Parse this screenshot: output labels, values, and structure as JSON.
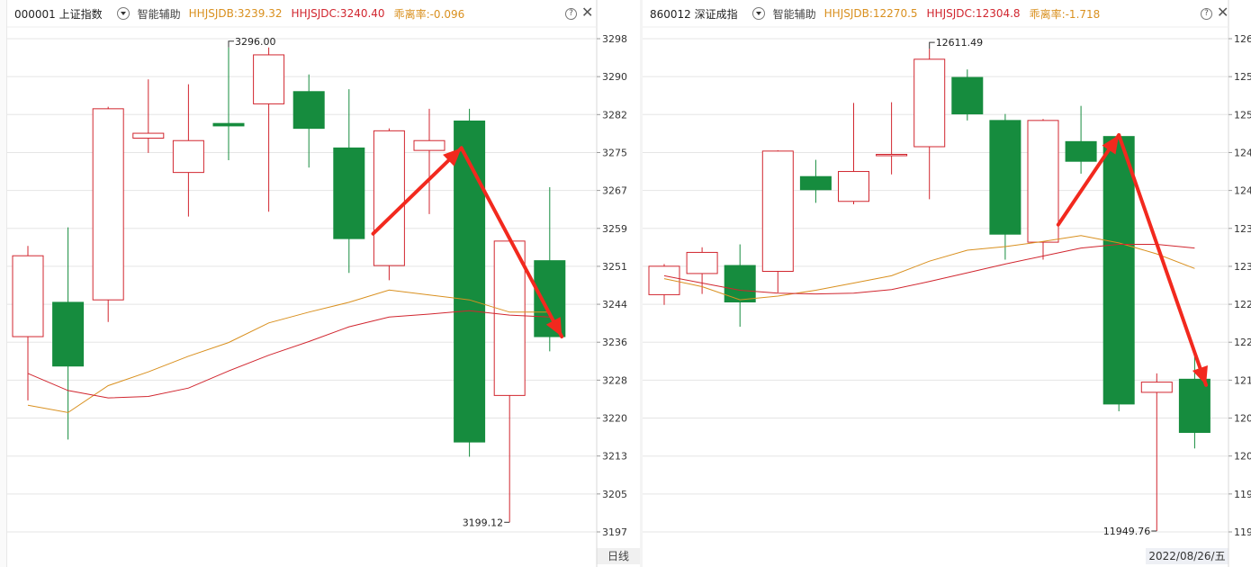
{
  "colors": {
    "up": "#d1262f",
    "down": "#168c3e",
    "ma1": "#d9901f",
    "ma2": "#d1262f",
    "arrow": "#f2291e",
    "grid": "#e5e5e5"
  },
  "panels": [
    {
      "code_name": "000001 上证指数",
      "assist": "智能辅助",
      "ma1_text": "HHJSJDB:3239.32",
      "ma2_text": "HHJSJDC:3240.40",
      "deviation_text": "乖离率:-0.096",
      "footer_label": "日线",
      "chart_data": {
        "type": "candlestick",
        "ylim": [
          3194.4,
          3300
        ],
        "y_ticks": [
          "3298",
          "3290",
          "3282",
          "3275",
          "3267",
          "3259",
          "3251",
          "3244",
          "3236",
          "3228",
          "3220",
          "3213",
          "3205",
          "3197"
        ],
        "candles": [
          {
            "o": 3237.0,
            "h": 3255.5,
            "l": 3224.0,
            "c": 3253.5
          },
          {
            "o": 3244.0,
            "h": 3259.3,
            "l": 3216.0,
            "c": 3231.0
          },
          {
            "o": 3244.5,
            "h": 3283.9,
            "l": 3240.0,
            "c": 3283.5
          },
          {
            "o": 3277.5,
            "h": 3289.5,
            "l": 3274.5,
            "c": 3278.5
          },
          {
            "o": 3270.5,
            "h": 3288.5,
            "l": 3261.5,
            "c": 3277.0
          },
          {
            "o": 3280.5,
            "h": 3296.0,
            "l": 3273.0,
            "c": 3280.0
          },
          {
            "o": 3284.5,
            "h": 3296.0,
            "l": 3262.5,
            "c": 3294.5
          },
          {
            "o": 3287.0,
            "h": 3290.5,
            "l": 3271.5,
            "c": 3279.5
          },
          {
            "o": 3275.5,
            "h": 3287.5,
            "l": 3250.0,
            "c": 3257.0
          },
          {
            "o": 3251.5,
            "h": 3279.5,
            "l": 3248.5,
            "c": 3279.0
          },
          {
            "o": 3275.0,
            "h": 3283.5,
            "l": 3262.0,
            "c": 3277.0
          },
          {
            "o": 3281.0,
            "h": 3283.5,
            "l": 3212.5,
            "c": 3215.5
          },
          {
            "o": 3225.0,
            "h": 3256.0,
            "l": 3199.12,
            "c": 3256.5
          },
          {
            "o": 3252.5,
            "h": 3267.5,
            "l": 3234.0,
            "c": 3237.0
          }
        ],
        "ma1": [
          3223.0,
          3221.5,
          3227.0,
          3229.8,
          3233.0,
          3235.8,
          3239.8,
          3242.0,
          3244.0,
          3246.5,
          3245.5,
          3244.5,
          3242.0,
          3242.0
        ],
        "ma2": [
          3229.5,
          3226.0,
          3224.5,
          3224.8,
          3226.5,
          3230.0,
          3233.2,
          3236.0,
          3239.0,
          3241.0,
          3241.6,
          3242.3,
          3241.4,
          3241.0
        ],
        "high_label": "3296.00",
        "low_label": "3199.12",
        "arrows": [
          {
            "from": [
              8.6,
              3258.0
            ],
            "to": [
              10.8,
              3275.5
            ]
          },
          {
            "from": [
              10.8,
              3275.5
            ],
            "to": [
              13.3,
              3237.0
            ]
          }
        ]
      }
    },
    {
      "code_name": "860012 深证成指",
      "assist": "智能辅助",
      "ma1_text": "HHJSJDB:12270.5",
      "ma2_text": "HHJSJDC:12304.8",
      "deviation_text": "乖离率:-1.718",
      "footer_label": "2022/08/26/五",
      "chart_data": {
        "type": "candlestick",
        "ylim": [
          11930,
          12640
        ],
        "y_ticks": [
          "126",
          "125",
          "125",
          "124",
          "124",
          "123",
          "123",
          "122",
          "122",
          "121",
          "120",
          "120",
          "119",
          "119"
        ],
        "candles": [
          {
            "o": 12274.0,
            "h": 12316.0,
            "l": 12260.0,
            "c": 12313.0
          },
          {
            "o": 12303.0,
            "h": 12339.0,
            "l": 12275.0,
            "c": 12332.0
          },
          {
            "o": 12314.0,
            "h": 12343.0,
            "l": 12230.0,
            "c": 12264.0
          },
          {
            "o": 12306.0,
            "h": 12472.0,
            "l": 12277.0,
            "c": 12471.0
          },
          {
            "o": 12436.0,
            "h": 12459.0,
            "l": 12400.0,
            "c": 12418.0
          },
          {
            "o": 12402.0,
            "h": 12537.0,
            "l": 12398.0,
            "c": 12443.0
          },
          {
            "o": 12466.0,
            "h": 12538.0,
            "l": 12439.0,
            "c": 12466.5
          },
          {
            "o": 12477.0,
            "h": 12611.49,
            "l": 12405.0,
            "c": 12597.0
          },
          {
            "o": 12572.0,
            "h": 12583.0,
            "l": 12513.0,
            "c": 12522.0
          },
          {
            "o": 12513.0,
            "h": 12522.0,
            "l": 12322.0,
            "c": 12357.0
          },
          {
            "o": 12346.0,
            "h": 12515.0,
            "l": 12322.0,
            "c": 12513.0
          },
          {
            "o": 12484.0,
            "h": 12533.0,
            "l": 12440.0,
            "c": 12457.0
          },
          {
            "o": 12491.0,
            "h": 12495.0,
            "l": 12114.0,
            "c": 12124.0
          },
          {
            "o": 12140.0,
            "h": 12166.0,
            "l": 11949.76,
            "c": 12154.0
          },
          {
            "o": 12158.0,
            "h": 12200.0,
            "l": 12063.0,
            "c": 12085.0
          }
        ],
        "ma1": [
          12296.0,
          12285.0,
          12267.0,
          12272.0,
          12280.0,
          12290.0,
          12300.0,
          12320.0,
          12335.0,
          12340.0,
          12347.0,
          12355.0,
          12345.0,
          12330.0,
          12310.0
        ],
        "ma2": [
          12300.0,
          12290.0,
          12280.0,
          12276.0,
          12275.0,
          12276.0,
          12281.0,
          12292.0,
          12304.0,
          12316.0,
          12327.0,
          12338.0,
          12343.0,
          12343.0,
          12338.0
        ],
        "high_label": "12611.49",
        "low_label": "11949.76",
        "arrows": [
          {
            "from": [
              10.4,
              12370.0
            ],
            "to": [
              12.0,
              12493.0
            ]
          },
          {
            "from": [
              12.0,
              12493.0
            ],
            "to": [
              14.3,
              12150.0
            ]
          }
        ]
      }
    }
  ]
}
